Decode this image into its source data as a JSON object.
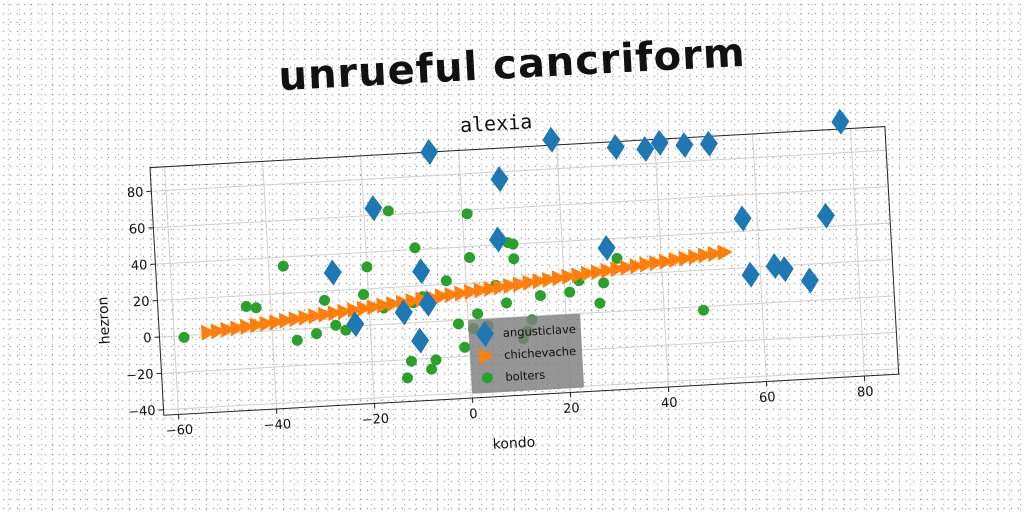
{
  "supertitle": "unrueful cancriform",
  "chart_data": {
    "type": "scatter",
    "title": "alexia",
    "xlabel": "kondo",
    "ylabel": "hezron",
    "xlim": [
      -63,
      87
    ],
    "ylim": [
      -43,
      93
    ],
    "xticks": [
      -60,
      -40,
      -20,
      0,
      20,
      40,
      60,
      80
    ],
    "yticks": [
      -40,
      -20,
      0,
      20,
      40,
      60,
      80
    ],
    "grid": true,
    "legend_position": "lower center",
    "series": [
      {
        "name": "angusticlave",
        "color": "#1f77b4",
        "marker": "diamond",
        "points": [
          [
            -27,
            30
          ],
          [
            -23,
            1
          ],
          [
            -18,
            64
          ],
          [
            -9,
            28
          ],
          [
            -8,
            10
          ],
          [
            -13,
            6
          ],
          [
            -10,
            -10
          ],
          [
            -6,
            93
          ],
          [
            8,
            76
          ],
          [
            7,
            43
          ],
          [
            19,
            96
          ],
          [
            29,
            35
          ],
          [
            32,
            90
          ],
          [
            38,
            88
          ],
          [
            41,
            91
          ],
          [
            46,
            89
          ],
          [
            51,
            89
          ],
          [
            57,
            47
          ],
          [
            58,
            16
          ],
          [
            63,
            20
          ],
          [
            65,
            18
          ],
          [
            70,
            11
          ],
          [
            74,
            46
          ],
          [
            78,
            97
          ]
        ]
      },
      {
        "name": "chichevache",
        "color": "#ff7f0e",
        "marker": "triangle-right",
        "points": [
          [
            -53,
            1
          ],
          [
            -51,
            1.5
          ],
          [
            -49,
            2
          ],
          [
            -47,
            2.5
          ],
          [
            -45,
            3
          ],
          [
            -43,
            3.6
          ],
          [
            -41,
            4.1
          ],
          [
            -39,
            4.6
          ],
          [
            -37,
            5.2
          ],
          [
            -35,
            5.7
          ],
          [
            -33,
            6.2
          ],
          [
            -31,
            6.8
          ],
          [
            -29,
            7.3
          ],
          [
            -27,
            7.8
          ],
          [
            -25,
            8.3
          ],
          [
            -23,
            8.9
          ],
          [
            -21,
            9.4
          ],
          [
            -19,
            9.9
          ],
          [
            -17,
            10.5
          ],
          [
            -15,
            11
          ],
          [
            -13,
            11.5
          ],
          [
            -11,
            12.1
          ],
          [
            -9,
            12.6
          ],
          [
            -7,
            13.1
          ],
          [
            -5,
            13.7
          ],
          [
            -3,
            14.2
          ],
          [
            -1,
            14.7
          ],
          [
            1,
            15.3
          ],
          [
            3,
            15.8
          ],
          [
            5,
            16.3
          ],
          [
            7,
            16.9
          ],
          [
            9,
            17.4
          ],
          [
            11,
            17.9
          ],
          [
            13,
            18.5
          ],
          [
            15,
            19
          ],
          [
            17,
            19.5
          ],
          [
            19,
            20.1
          ],
          [
            21,
            20.6
          ],
          [
            23,
            21.1
          ],
          [
            25,
            21.7
          ],
          [
            27,
            22.2
          ],
          [
            29,
            22.7
          ],
          [
            31,
            23.3
          ],
          [
            33,
            23.8
          ],
          [
            35,
            24.3
          ],
          [
            37,
            24.9
          ],
          [
            39,
            25.4
          ],
          [
            41,
            25.9
          ],
          [
            43,
            26.5
          ],
          [
            45,
            27
          ],
          [
            47,
            27.5
          ],
          [
            49,
            28.1
          ],
          [
            51,
            28.6
          ],
          [
            53,
            29.1
          ]
        ]
      },
      {
        "name": "bolters",
        "color": "#2ca02c",
        "marker": "circle",
        "points": [
          [
            -58,
            -1
          ],
          [
            -45,
            14
          ],
          [
            -43,
            13
          ],
          [
            -37,
            35
          ],
          [
            -35,
            -6
          ],
          [
            -31,
            -3
          ],
          [
            -29,
            15
          ],
          [
            -27,
            1
          ],
          [
            -25,
            -2
          ],
          [
            -21,
            17
          ],
          [
            -20,
            32
          ],
          [
            -17,
            9
          ],
          [
            -15,
            62
          ],
          [
            -13,
            -30
          ],
          [
            -12,
            -21
          ],
          [
            -11,
            11
          ],
          [
            -10,
            41
          ],
          [
            -9,
            14
          ],
          [
            -8,
            -26
          ],
          [
            -7,
            -21
          ],
          [
            -4,
            22
          ],
          [
            -2,
            -2
          ],
          [
            -1,
            -15
          ],
          [
            1,
            -5
          ],
          [
            1,
            58
          ],
          [
            1,
            34
          ],
          [
            2,
            3
          ],
          [
            4,
            -4
          ],
          [
            6,
            18
          ],
          [
            8,
            8
          ],
          [
            9,
            41
          ],
          [
            10,
            40
          ],
          [
            10,
            32
          ],
          [
            11,
            -12
          ],
          [
            12,
            -8
          ],
          [
            13,
            -2
          ],
          [
            15,
            11
          ],
          [
            21,
            12
          ],
          [
            23,
            18
          ],
          [
            27,
            5
          ],
          [
            28,
            16
          ],
          [
            31,
            29
          ],
          [
            48,
            -2
          ]
        ]
      }
    ]
  }
}
